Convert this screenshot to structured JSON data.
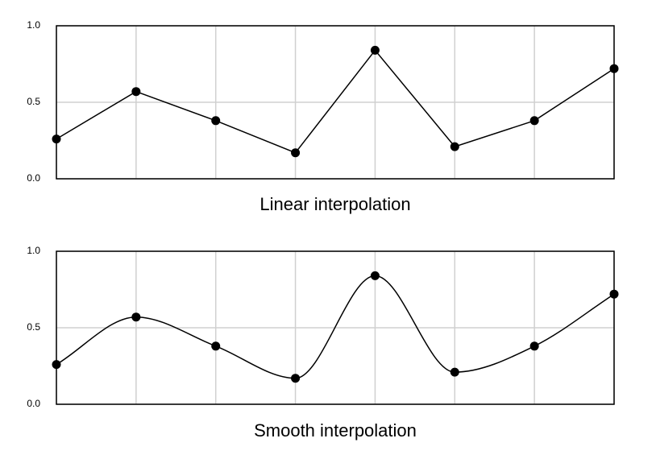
{
  "chart_data": [
    {
      "type": "line",
      "interpolation": "linear",
      "title": "Linear interpolation",
      "categories": [
        null,
        null,
        null,
        null,
        null,
        null,
        null,
        null
      ],
      "values": [
        0.26,
        0.57,
        0.38,
        0.17,
        0.84,
        0.21,
        0.38,
        0.72
      ],
      "color": "#000000",
      "ylim": [
        0,
        1
      ],
      "yticks": [
        {
          "value": 0,
          "label": "0.0"
        },
        {
          "value": 0.5,
          "label": "0.5"
        },
        {
          "value": 1,
          "label": "1.0"
        }
      ],
      "grid": true
    },
    {
      "type": "line",
      "interpolation": "smooth",
      "title": "Smooth interpolation",
      "categories": [
        null,
        null,
        null,
        null,
        null,
        null,
        null,
        null
      ],
      "values": [
        0.26,
        0.57,
        0.38,
        0.17,
        0.84,
        0.21,
        0.38,
        0.72
      ],
      "color": "#000000",
      "ylim": [
        0,
        1
      ],
      "yticks": [
        {
          "value": 0,
          "label": "0.0"
        },
        {
          "value": 0.5,
          "label": "0.5"
        },
        {
          "value": 1,
          "label": "1.0"
        }
      ],
      "grid": true
    }
  ]
}
